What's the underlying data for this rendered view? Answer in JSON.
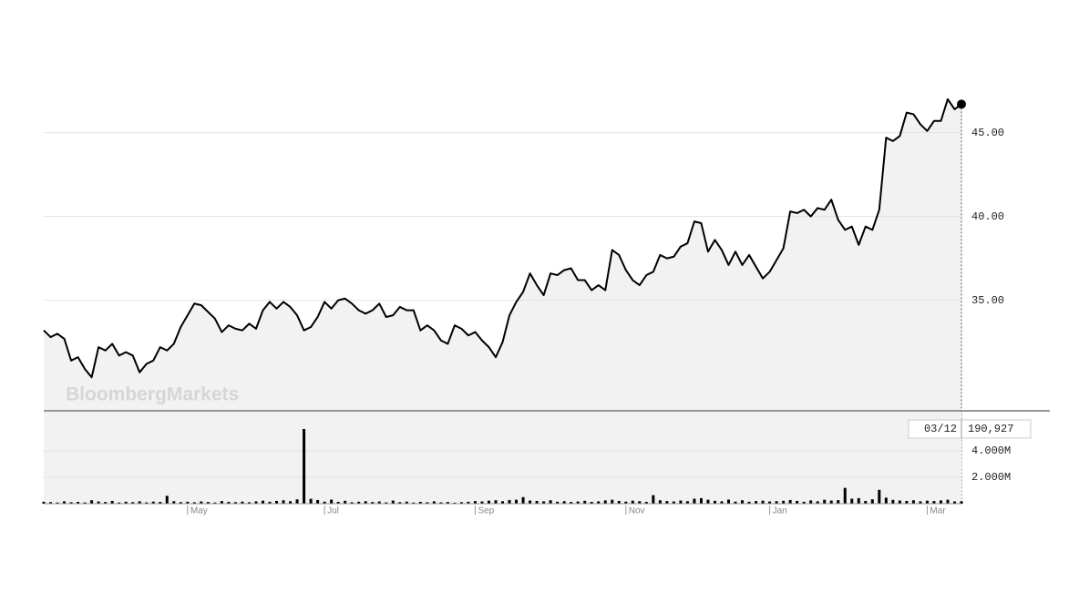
{
  "chart_data": [
    {
      "type": "line",
      "watermark": "BloombergMarkets",
      "color": "#000000",
      "fill": "#f2f2f2",
      "grid": true,
      "xlim": [
        0,
        134
      ],
      "ylim": [
        28.4,
        47.7
      ],
      "yticks": [
        {
          "value": 35,
          "label": "35.00"
        },
        {
          "value": 40,
          "label": "40.00"
        },
        {
          "value": 45,
          "label": "45.00"
        }
      ],
      "values": [
        33.2,
        32.8,
        33.0,
        32.7,
        31.4,
        31.6,
        30.9,
        30.4,
        32.2,
        32.0,
        32.4,
        31.7,
        31.9,
        31.7,
        30.7,
        31.2,
        31.4,
        32.2,
        32.0,
        32.4,
        33.4,
        34.1,
        34.8,
        34.7,
        34.3,
        33.9,
        33.1,
        33.5,
        33.3,
        33.2,
        33.6,
        33.3,
        34.4,
        34.9,
        34.5,
        34.9,
        34.6,
        34.1,
        33.2,
        33.4,
        34.0,
        34.9,
        34.5,
        35.0,
        35.1,
        34.8,
        34.4,
        34.2,
        34.4,
        34.8,
        34.0,
        34.1,
        34.6,
        34.4,
        34.4,
        33.2,
        33.5,
        33.2,
        32.6,
        32.4,
        33.5,
        33.3,
        32.9,
        33.1,
        32.6,
        32.2,
        31.6,
        32.5,
        34.1,
        34.9,
        35.5,
        36.6,
        35.9,
        35.3,
        36.6,
        36.5,
        36.8,
        36.9,
        36.2,
        36.2,
        35.6,
        35.9,
        35.6,
        38.0,
        37.7,
        36.8,
        36.2,
        35.9,
        36.5,
        36.7,
        37.7,
        37.5,
        37.6,
        38.2,
        38.4,
        39.7,
        39.6,
        37.9,
        38.6,
        38.0,
        37.1,
        37.9,
        37.1,
        37.7,
        37.0,
        36.3,
        36.7,
        37.4,
        38.1,
        40.3,
        40.2,
        40.4,
        40.0,
        40.5,
        40.4,
        41.0,
        39.8,
        39.2,
        39.4,
        38.3,
        39.4,
        39.2,
        40.4,
        44.7,
        44.5,
        44.8,
        46.2,
        46.1,
        45.5,
        45.1,
        45.7,
        45.7,
        47.0,
        46.4,
        46.7
      ]
    },
    {
      "type": "bar",
      "color": "#000000",
      "fill": "#f2f2f2",
      "grid": true,
      "xlim": [
        0,
        134
      ],
      "ylim": [
        0,
        6970000
      ],
      "yticks": [
        {
          "value": 2000000,
          "label": "2.000M"
        },
        {
          "value": 4000000,
          "label": "4.000M"
        }
      ],
      "xticks": [
        {
          "value": 21,
          "label": "May"
        },
        {
          "value": 41,
          "label": "Jul"
        },
        {
          "value": 63,
          "label": "Sep"
        },
        {
          "value": 85,
          "label": "Nov"
        },
        {
          "value": 106,
          "label": "Jan"
        },
        {
          "value": 129,
          "label": "Mar"
        }
      ],
      "cursor": {
        "date": "03/12",
        "volume": {
          "value": 190927,
          "label": "190,927"
        }
      },
      "values": [
        150000,
        120000,
        90000,
        180000,
        110000,
        140000,
        100000,
        260000,
        170000,
        130000,
        210000,
        90000,
        150000,
        120000,
        180000,
        100000,
        160000,
        140000,
        600000,
        190000,
        120000,
        150000,
        110000,
        170000,
        130000,
        90000,
        200000,
        140000,
        120000,
        160000,
        110000,
        180000,
        230000,
        150000,
        210000,
        260000,
        190000,
        330000,
        5660000,
        370000,
        280000,
        160000,
        310000,
        140000,
        220000,
        110000,
        150000,
        190000,
        130000,
        170000,
        100000,
        240000,
        120000,
        160000,
        90000,
        140000,
        110000,
        180000,
        100000,
        130000,
        80000,
        120000,
        150000,
        200000,
        170000,
        230000,
        260000,
        190000,
        280000,
        300000,
        500000,
        240000,
        210000,
        180000,
        260000,
        150000,
        190000,
        130000,
        170000,
        220000,
        140000,
        180000,
        250000,
        300000,
        210000,
        160000,
        230000,
        190000,
        140000,
        650000,
        260000,
        200000,
        170000,
        240000,
        190000,
        380000,
        420000,
        300000,
        220000,
        180000,
        310000,
        160000,
        260000,
        150000,
        200000,
        230000,
        170000,
        190000,
        220000,
        280000,
        210000,
        150000,
        250000,
        180000,
        300000,
        240000,
        270000,
        1200000,
        380000,
        420000,
        210000,
        330000,
        1050000,
        460000,
        290000,
        240000,
        210000,
        260000,
        180000,
        230000,
        200000,
        250000,
        300000,
        170000,
        190927
      ]
    }
  ]
}
